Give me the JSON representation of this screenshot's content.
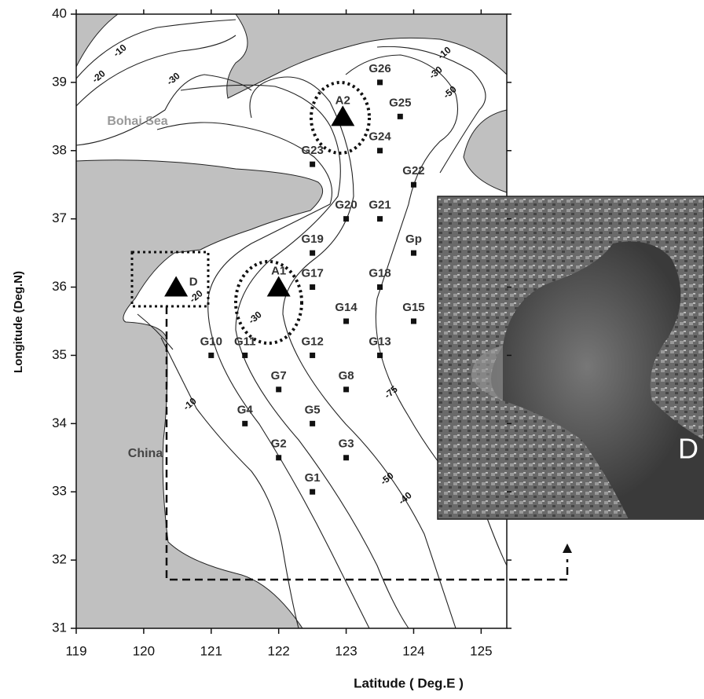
{
  "x_axis": {
    "label": "Latitude ( Deg.E )",
    "range": [
      119,
      125.38
    ],
    "ticks": [
      119,
      120,
      121,
      122,
      123,
      124,
      125
    ]
  },
  "y_axis": {
    "label": "Longitude (Deg.N)",
    "range": [
      31,
      40
    ],
    "ticks": [
      31,
      32,
      33,
      34,
      35,
      36,
      37,
      38,
      39,
      40
    ]
  },
  "places": [
    "Bohai Sea",
    "China"
  ],
  "stations": [
    {
      "label": "G26",
      "lon": 123.5,
      "lat": 39.0
    },
    {
      "label": "G25",
      "lon": 123.8,
      "lat": 38.5
    },
    {
      "label": "G24",
      "lon": 123.5,
      "lat": 38.0
    },
    {
      "label": "G23",
      "lon": 122.5,
      "lat": 37.8
    },
    {
      "label": "G22",
      "lon": 124.0,
      "lat": 37.5
    },
    {
      "label": "G20",
      "lon": 123.0,
      "lat": 37.0
    },
    {
      "label": "G21",
      "lon": 123.5,
      "lat": 37.0
    },
    {
      "label": "G19",
      "lon": 122.5,
      "lat": 36.5
    },
    {
      "label": "Gp",
      "lon": 124.0,
      "lat": 36.5
    },
    {
      "label": "G17",
      "lon": 122.5,
      "lat": 36.0
    },
    {
      "label": "G18",
      "lon": 123.5,
      "lat": 36.0
    },
    {
      "label": "G14",
      "lon": 123.0,
      "lat": 35.5
    },
    {
      "label": "G15",
      "lon": 124.0,
      "lat": 35.5
    },
    {
      "label": "G10",
      "lon": 121.0,
      "lat": 35.0
    },
    {
      "label": "G11",
      "lon": 121.5,
      "lat": 35.0
    },
    {
      "label": "G12",
      "lon": 122.5,
      "lat": 35.0
    },
    {
      "label": "G13",
      "lon": 123.5,
      "lat": 35.0
    },
    {
      "label": "G7",
      "lon": 122.0,
      "lat": 34.5
    },
    {
      "label": "G8",
      "lon": 123.0,
      "lat": 34.5
    },
    {
      "label": "G4",
      "lon": 121.5,
      "lat": 34.0
    },
    {
      "label": "G5",
      "lon": 122.5,
      "lat": 34.0
    },
    {
      "label": "G2",
      "lon": 122.0,
      "lat": 33.5
    },
    {
      "label": "G3",
      "lon": 123.0,
      "lat": 33.5
    },
    {
      "label": "G1",
      "lon": 122.5,
      "lat": 33.0
    }
  ],
  "sites": [
    {
      "label": "A2",
      "lon": 122.95,
      "lat": 38.5
    },
    {
      "label": "A1",
      "lon": 122.0,
      "lat": 36.0
    },
    {
      "label": "D",
      "lon": 120.48,
      "lat": 36.0
    }
  ],
  "contour_labels": [
    "-10",
    "-20",
    "-30",
    "-10",
    "-30",
    "-50",
    "-20",
    "-30",
    "-10",
    "-75",
    "-50",
    "-40"
  ],
  "inset": {
    "label": "D"
  }
}
